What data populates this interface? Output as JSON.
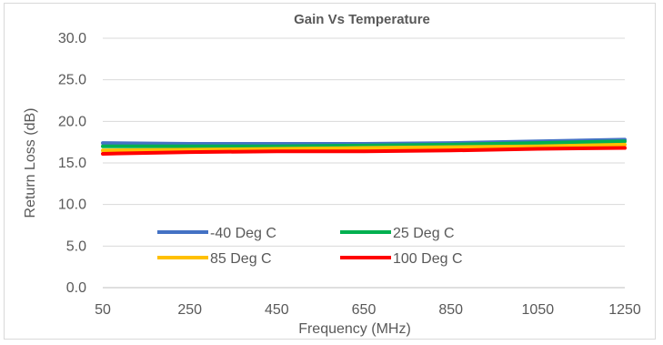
{
  "chart_data": {
    "type": "line",
    "title": "Gain Vs Temperature",
    "xlabel": "Frequency (MHz)",
    "ylabel": "Return Loss (dB)",
    "xlim": [
      50,
      1250
    ],
    "ylim": [
      0,
      30
    ],
    "x_ticks": [
      "50",
      "250",
      "450",
      "650",
      "850",
      "1050",
      "1250"
    ],
    "y_ticks": [
      "0.0",
      "5.0",
      "10.0",
      "15.0",
      "20.0",
      "25.0",
      "30.0"
    ],
    "grid": true,
    "legend_position": "bottom-left",
    "x": [
      50,
      250,
      450,
      650,
      850,
      1050,
      1250
    ],
    "series": [
      {
        "name": "-40 Deg C",
        "color": "#4472c4",
        "values": [
          17.4,
          17.3,
          17.3,
          17.3,
          17.4,
          17.6,
          17.8
        ]
      },
      {
        "name": "25 Deg C",
        "color": "#00b050",
        "values": [
          17.0,
          17.0,
          17.0,
          17.1,
          17.2,
          17.4,
          17.6
        ]
      },
      {
        "name": "85 Deg C",
        "color": "#ffc000",
        "values": [
          16.5,
          16.6,
          16.7,
          16.8,
          16.9,
          17.0,
          17.2
        ]
      },
      {
        "name": "100 Deg C",
        "color": "#ff0000",
        "values": [
          16.1,
          16.3,
          16.4,
          16.4,
          16.5,
          16.7,
          16.8
        ]
      }
    ]
  }
}
